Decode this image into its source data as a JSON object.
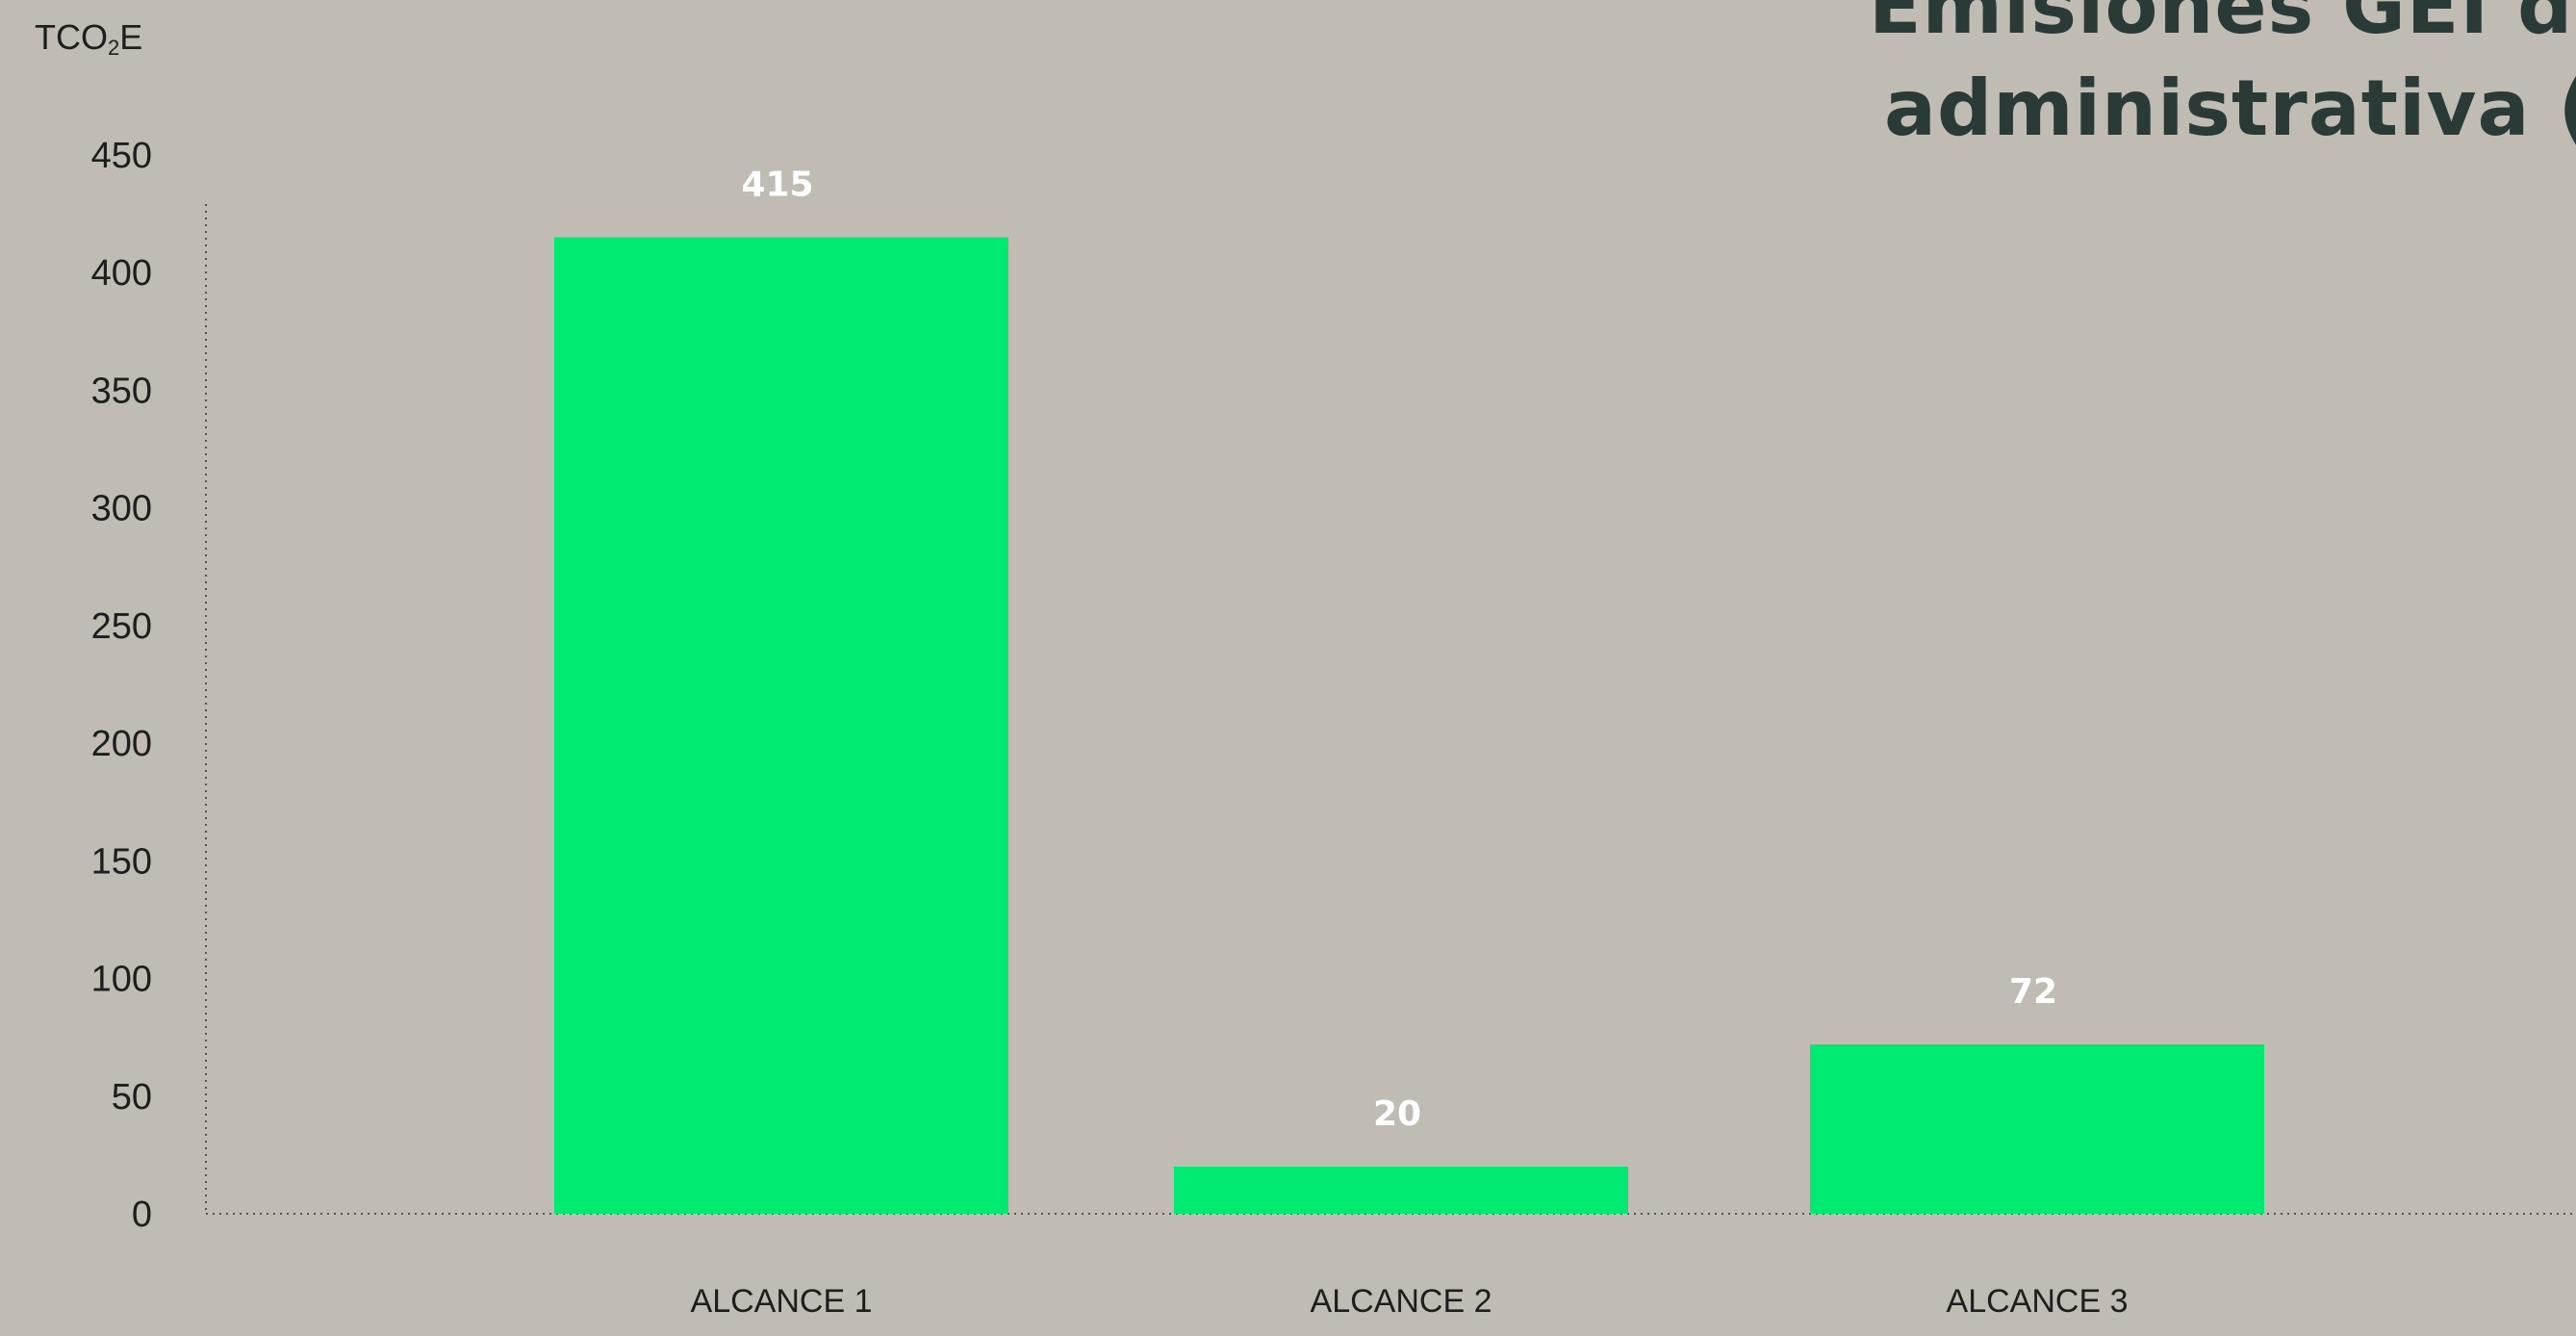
{
  "chart_data": {
    "type": "bar",
    "title_lines": [
      "Emisiones GEI de",
      "administrativa ("
    ],
    "ylabel_parts": {
      "base": "TCO",
      "sub": "2",
      "tail": "E"
    },
    "categories": [
      "ALCANCE 1",
      "ALCANCE 2",
      "ALCANCE 3"
    ],
    "values": [
      415,
      20,
      72
    ],
    "data_labels": [
      "415",
      "20",
      "72"
    ],
    "ylim": [
      0,
      450
    ],
    "yticks": [
      0,
      50,
      100,
      150,
      200,
      250,
      300,
      350,
      400,
      450
    ],
    "grid": false,
    "bar_color": "#00ea72",
    "data_label_color": "#ffffff",
    "axis_color": "#555555"
  }
}
